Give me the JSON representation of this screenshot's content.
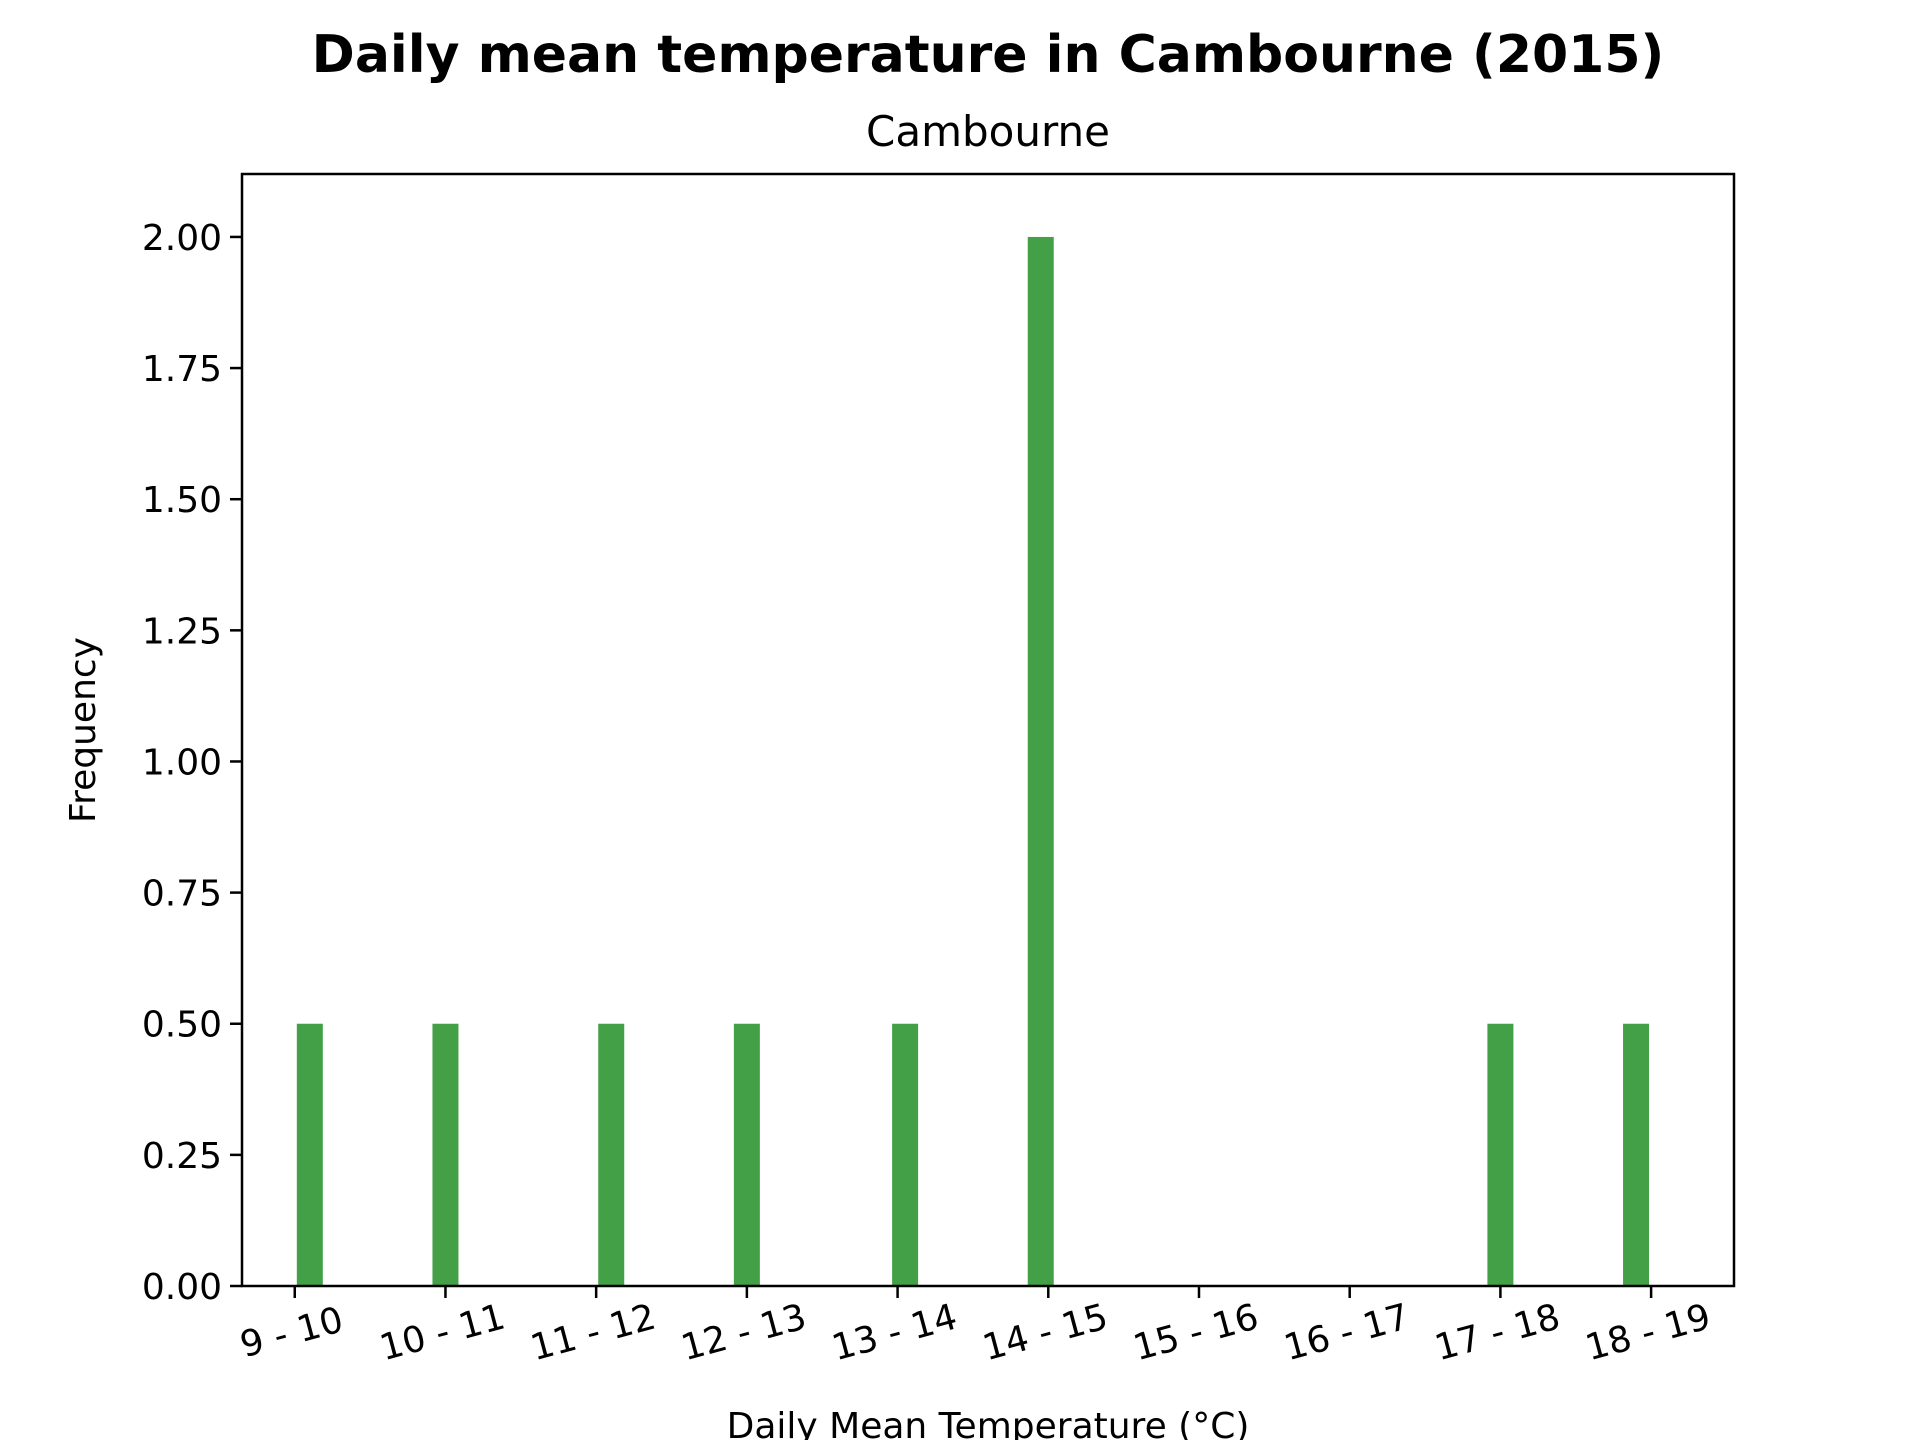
{
  "chart_data": {
    "type": "bar",
    "title": "Daily mean temperature in Cambourne (2015)",
    "subtitle": "Cambourne",
    "xlabel": "Daily Mean Temperature (°C)",
    "ylabel": "Frequency",
    "categories": [
      "9 - 10",
      "10 - 11",
      "11 - 12",
      "12 - 13",
      "13 - 14",
      "14 - 15",
      "15 - 16",
      "16 - 17",
      "17 - 18",
      "18 - 19"
    ],
    "bars": [
      {
        "x": 9.1,
        "value": 0.5
      },
      {
        "x": 10.0,
        "value": 0.5
      },
      {
        "x": 11.1,
        "value": 0.5
      },
      {
        "x": 12.0,
        "value": 0.5
      },
      {
        "x": 13.05,
        "value": 0.5
      },
      {
        "x": 13.95,
        "value": 2.0
      },
      {
        "x": 17.0,
        "value": 0.5
      },
      {
        "x": 17.9,
        "value": 0.5
      }
    ],
    "ylim": [
      0,
      2.12
    ],
    "xlim": [
      8.65,
      18.55
    ],
    "yticks": [
      "0.00",
      "0.25",
      "0.50",
      "0.75",
      "1.00",
      "1.25",
      "1.50",
      "1.75",
      "2.00"
    ],
    "grid": false,
    "bar_color": "#43a047"
  }
}
